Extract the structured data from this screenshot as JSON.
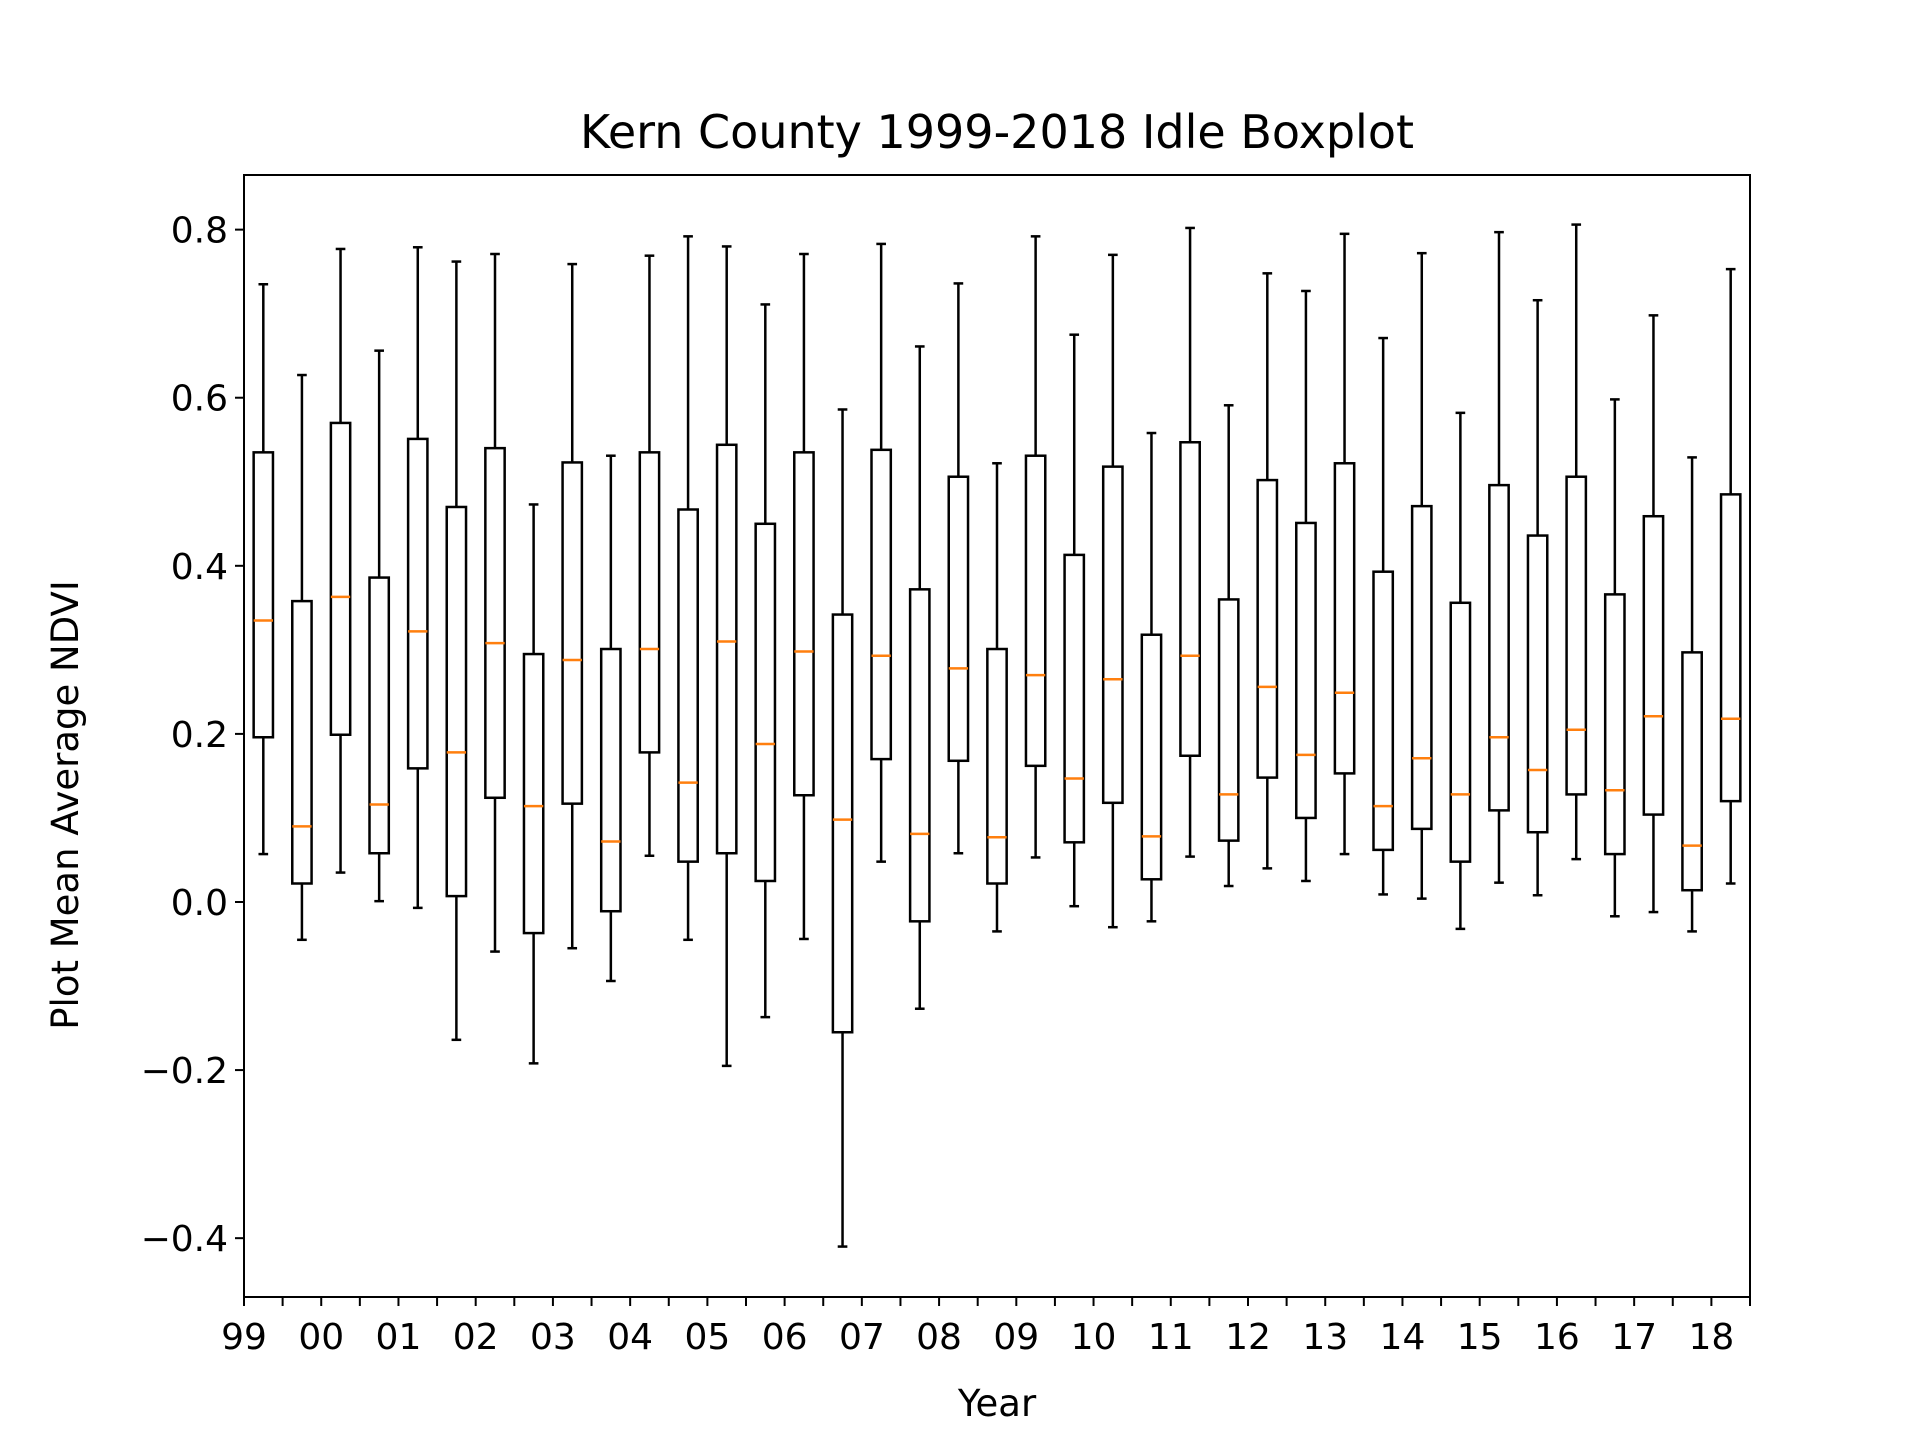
{
  "chart_data": {
    "type": "boxplot",
    "title": "Kern County 1999-2018 Idle Boxplot",
    "xlabel": "Year",
    "ylabel": "Plot Mean Average NDVI",
    "ylim": [
      -0.47,
      0.865
    ],
    "yticks": [
      {
        "value": 0.8,
        "label": "0.8"
      },
      {
        "value": 0.6,
        "label": "0.6"
      },
      {
        "value": 0.4,
        "label": "0.4"
      },
      {
        "value": 0.2,
        "label": "0.2"
      },
      {
        "value": 0.0,
        "label": "0.0"
      },
      {
        "value": -0.2,
        "label": "−0.2"
      },
      {
        "value": -0.4,
        "label": "−0.4"
      }
    ],
    "xtick_labels": [
      "99",
      "00",
      "01",
      "02",
      "03",
      "04",
      "05",
      "06",
      "07",
      "08",
      "09",
      "10",
      "11",
      "12",
      "13",
      "14",
      "15",
      "16",
      "17",
      "18"
    ],
    "colors": {
      "box": "#000000",
      "median": "#ff7f0e"
    },
    "grid": false,
    "boxes": [
      {
        "whislo": 0.057,
        "q1": 0.196,
        "med": 0.335,
        "q3": 0.535,
        "whishi": 0.735
      },
      {
        "whislo": -0.045,
        "q1": 0.022,
        "med": 0.09,
        "q3": 0.358,
        "whishi": 0.627
      },
      {
        "whislo": 0.035,
        "q1": 0.199,
        "med": 0.363,
        "q3": 0.57,
        "whishi": 0.777
      },
      {
        "whislo": 0.001,
        "q1": 0.058,
        "med": 0.116,
        "q3": 0.386,
        "whishi": 0.656
      },
      {
        "whislo": -0.007,
        "q1": 0.159,
        "med": 0.322,
        "q3": 0.551,
        "whishi": 0.779
      },
      {
        "whislo": -0.164,
        "q1": 0.007,
        "med": 0.178,
        "q3": 0.47,
        "whishi": 0.762
      },
      {
        "whislo": -0.059,
        "q1": 0.124,
        "med": 0.308,
        "q3": 0.54,
        "whishi": 0.771
      },
      {
        "whislo": -0.192,
        "q1": -0.037,
        "med": 0.114,
        "q3": 0.295,
        "whishi": 0.473
      },
      {
        "whislo": -0.055,
        "q1": 0.117,
        "med": 0.288,
        "q3": 0.523,
        "whishi": 0.759
      },
      {
        "whislo": -0.094,
        "q1": -0.011,
        "med": 0.072,
        "q3": 0.301,
        "whishi": 0.531
      },
      {
        "whislo": 0.055,
        "q1": 0.178,
        "med": 0.301,
        "q3": 0.535,
        "whishi": 0.769
      },
      {
        "whislo": -0.045,
        "q1": 0.048,
        "med": 0.142,
        "q3": 0.467,
        "whishi": 0.792
      },
      {
        "whislo": -0.195,
        "q1": 0.058,
        "med": 0.31,
        "q3": 0.544,
        "whishi": 0.78
      },
      {
        "whislo": -0.137,
        "q1": 0.025,
        "med": 0.188,
        "q3": 0.45,
        "whishi": 0.711
      },
      {
        "whislo": -0.044,
        "q1": 0.127,
        "med": 0.298,
        "q3": 0.535,
        "whishi": 0.771
      },
      {
        "whislo": -0.41,
        "q1": -0.155,
        "med": 0.098,
        "q3": 0.342,
        "whishi": 0.586
      },
      {
        "whislo": 0.048,
        "q1": 0.17,
        "med": 0.293,
        "q3": 0.538,
        "whishi": 0.783
      },
      {
        "whislo": -0.127,
        "q1": -0.023,
        "med": 0.081,
        "q3": 0.372,
        "whishi": 0.661
      },
      {
        "whislo": 0.058,
        "q1": 0.168,
        "med": 0.278,
        "q3": 0.506,
        "whishi": 0.736
      },
      {
        "whislo": -0.035,
        "q1": 0.022,
        "med": 0.077,
        "q3": 0.301,
        "whishi": 0.522
      },
      {
        "whislo": 0.053,
        "q1": 0.162,
        "med": 0.27,
        "q3": 0.531,
        "whishi": 0.792
      },
      {
        "whislo": -0.005,
        "q1": 0.071,
        "med": 0.147,
        "q3": 0.413,
        "whishi": 0.675
      },
      {
        "whislo": -0.03,
        "q1": 0.118,
        "med": 0.265,
        "q3": 0.518,
        "whishi": 0.77
      },
      {
        "whislo": -0.023,
        "q1": 0.027,
        "med": 0.078,
        "q3": 0.318,
        "whishi": 0.558
      },
      {
        "whislo": 0.054,
        "q1": 0.174,
        "med": 0.293,
        "q3": 0.547,
        "whishi": 0.802
      },
      {
        "whislo": 0.019,
        "q1": 0.073,
        "med": 0.128,
        "q3": 0.36,
        "whishi": 0.591
      },
      {
        "whislo": 0.04,
        "q1": 0.148,
        "med": 0.256,
        "q3": 0.502,
        "whishi": 0.748
      },
      {
        "whislo": 0.025,
        "q1": 0.1,
        "med": 0.175,
        "q3": 0.451,
        "whishi": 0.727
      },
      {
        "whislo": 0.057,
        "q1": 0.153,
        "med": 0.249,
        "q3": 0.522,
        "whishi": 0.795
      },
      {
        "whislo": 0.009,
        "q1": 0.062,
        "med": 0.114,
        "q3": 0.393,
        "whishi": 0.671
      },
      {
        "whislo": 0.004,
        "q1": 0.087,
        "med": 0.171,
        "q3": 0.471,
        "whishi": 0.772
      },
      {
        "whislo": -0.032,
        "q1": 0.048,
        "med": 0.128,
        "q3": 0.356,
        "whishi": 0.582
      },
      {
        "whislo": 0.023,
        "q1": 0.109,
        "med": 0.196,
        "q3": 0.496,
        "whishi": 0.797
      },
      {
        "whislo": 0.008,
        "q1": 0.083,
        "med": 0.157,
        "q3": 0.436,
        "whishi": 0.716
      },
      {
        "whislo": 0.051,
        "q1": 0.128,
        "med": 0.205,
        "q3": 0.506,
        "whishi": 0.806
      },
      {
        "whislo": -0.017,
        "q1": 0.057,
        "med": 0.133,
        "q3": 0.366,
        "whishi": 0.598
      },
      {
        "whislo": -0.012,
        "q1": 0.104,
        "med": 0.221,
        "q3": 0.459,
        "whishi": 0.698
      },
      {
        "whislo": -0.035,
        "q1": 0.014,
        "med": 0.067,
        "q3": 0.297,
        "whishi": 0.529
      },
      {
        "whislo": 0.022,
        "q1": 0.12,
        "med": 0.218,
        "q3": 0.485,
        "whishi": 0.753
      }
    ]
  }
}
